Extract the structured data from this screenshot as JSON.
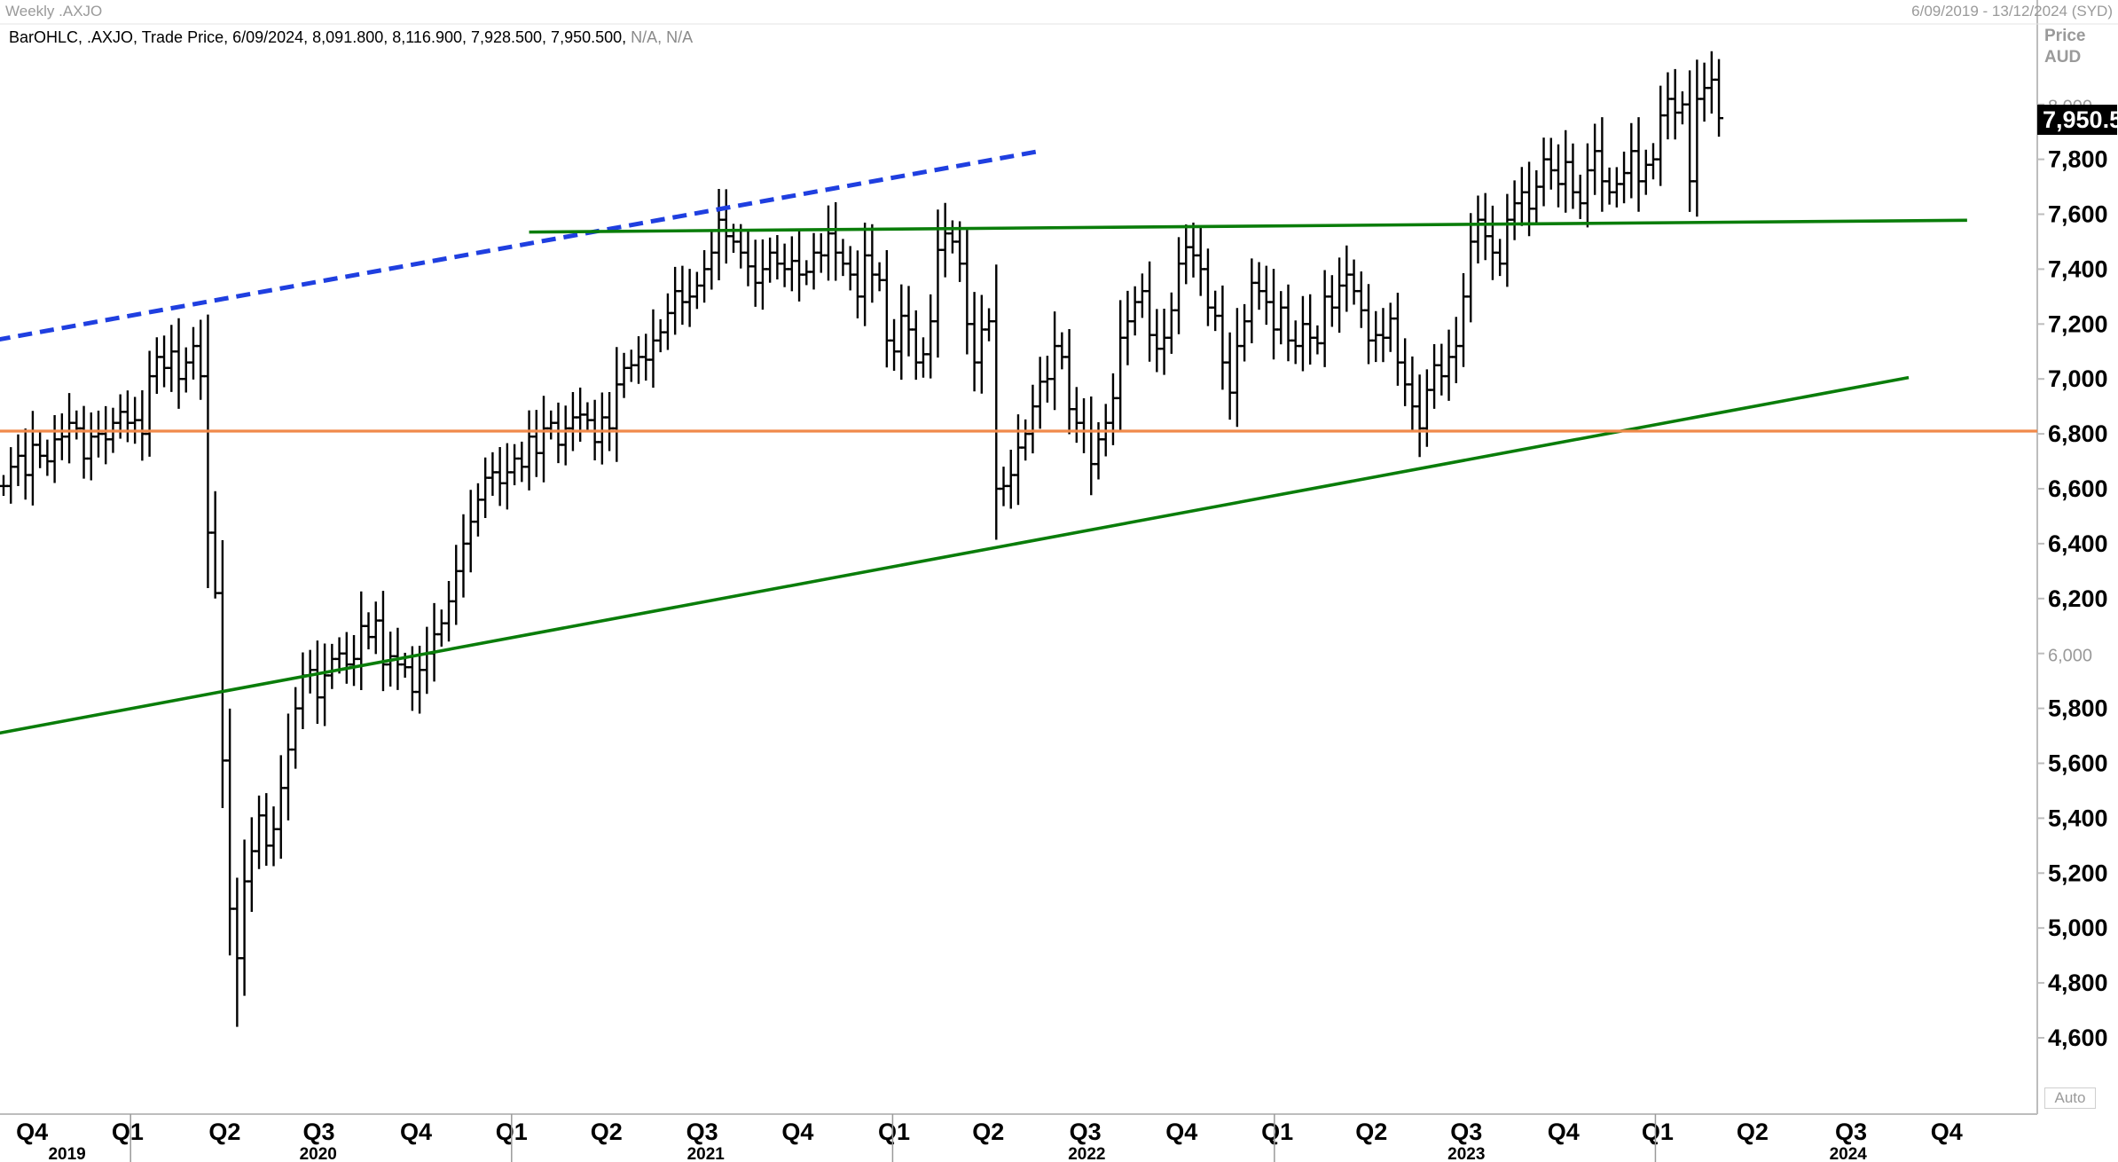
{
  "header": {
    "left_title": "Weekly .AXJO",
    "right_range": "6/09/2019 - 13/12/2024 (SYD)"
  },
  "ohlc_info": {
    "text": "BarOHLC, .AXJO, Trade Price, 6/09/2024, 8,091.800, 8,116.900, 7,928.500, 7,950.500,",
    "na": "N/A, N/A"
  },
  "price_axis": {
    "title_line1": "Price",
    "title_line2": "AUD",
    "last_price_label": "7,950.5",
    "ticks": [
      "4,600",
      "4,800",
      "5,000",
      "5,200",
      "5,400",
      "5,600",
      "5,800",
      "6,000",
      "6,200",
      "6,400",
      "6,600",
      "6,800",
      "7,000",
      "7,200",
      "7,400",
      "7,600",
      "7,800",
      "8,000"
    ],
    "auto_label": "Auto"
  },
  "colors": {
    "bars": "#000000",
    "support_green": "#0a7d0a",
    "resistance_blue": "#1f3fe0",
    "horizontal_orange": "#f08a4b",
    "header_grey": "#9a9a9a"
  },
  "chart_data": {
    "type": "ohlc",
    "title": "Weekly .AXJO",
    "ylabel": "Price AUD",
    "ylim": [
      4420,
      8350
    ],
    "x_unit": "weeks since 6/09/2019",
    "x_quarter_ticks": [
      {
        "label": "Q4",
        "week": 3.9
      },
      {
        "label": "Q1",
        "week": 17.0
      },
      {
        "label": "Q2",
        "week": 30.3
      },
      {
        "label": "Q3",
        "week": 43.2
      },
      {
        "label": "Q4",
        "week": 56.5
      },
      {
        "label": "Q1",
        "week": 69.6
      },
      {
        "label": "Q2",
        "week": 82.6
      },
      {
        "label": "Q3",
        "week": 95.7
      },
      {
        "label": "Q4",
        "week": 108.8
      },
      {
        "label": "Q1",
        "week": 122.0
      },
      {
        "label": "Q2",
        "week": 134.9
      },
      {
        "label": "Q3",
        "week": 148.2
      },
      {
        "label": "Q4",
        "week": 161.4
      },
      {
        "label": "Q1",
        "week": 174.5
      },
      {
        "label": "Q2",
        "week": 187.4
      },
      {
        "label": "Q3",
        "week": 200.4
      },
      {
        "label": "Q4",
        "week": 213.7
      },
      {
        "label": "Q1",
        "week": 226.6
      },
      {
        "label": "Q2",
        "week": 239.6
      },
      {
        "label": "Q3",
        "week": 253.1
      },
      {
        "label": "Q4",
        "week": 266.2
      }
    ],
    "x_year_labels": [
      {
        "label": "2019",
        "week": 8.7
      },
      {
        "label": "2020",
        "week": 43.1
      },
      {
        "label": "2021",
        "week": 96.2
      },
      {
        "label": "2022",
        "week": 148.4
      },
      {
        "label": "2023",
        "week": 200.4
      },
      {
        "label": "2024",
        "week": 252.7
      }
    ],
    "x_year_separators": [
      17.4,
      69.6,
      121.8,
      174.1,
      226.3
    ],
    "weekly_close_approx": [
      6610,
      6680,
      6720,
      6650,
      6760,
      6720,
      6700,
      6780,
      6790,
      6840,
      6820,
      6710,
      6790,
      6800,
      6780,
      6840,
      6880,
      6840,
      6850,
      6800,
      7010,
      7080,
      7040,
      7100,
      7000,
      7060,
      7120,
      7010,
      6440,
      6220,
      5610,
      5070,
      4890,
      5170,
      5280,
      5410,
      5300,
      5360,
      5510,
      5650,
      5800,
      5920,
      5940,
      5840,
      5920,
      5980,
      6000,
      5960,
      5980,
      6100,
      6060,
      6120,
      5960,
      5990,
      5960,
      5950,
      5860,
      5940,
      6000,
      6070,
      6110,
      6190,
      6300,
      6400,
      6480,
      6560,
      6640,
      6660,
      6620,
      6660,
      6710,
      6680,
      6790,
      6730,
      6820,
      6840,
      6760,
      6820,
      6860,
      6870,
      6850,
      6770,
      6860,
      6820,
      6980,
      7040,
      7050,
      7080,
      7070,
      7140,
      7170,
      7240,
      7320,
      7280,
      7300,
      7340,
      7400,
      7460,
      7580,
      7520,
      7500,
      7460,
      7410,
      7350,
      7400,
      7460,
      7420,
      7400,
      7430,
      7380,
      7390,
      7460,
      7450,
      7530,
      7460,
      7420,
      7380,
      7300,
      7450,
      7380,
      7360,
      7140,
      7100,
      7230,
      7180,
      7060,
      7090,
      7210,
      7470,
      7530,
      7500,
      7420,
      7200,
      7060,
      7180,
      7210,
      6600,
      6610,
      6650,
      6750,
      6800,
      6900,
      6990,
      7000,
      7120,
      7080,
      6890,
      6840,
      6810,
      6690,
      6780,
      6840,
      6930,
      7150,
      7210,
      7280,
      7320,
      7160,
      7110,
      7150,
      7250,
      7420,
      7480,
      7450,
      7400,
      7260,
      7230,
      7060,
      6950,
      7120,
      7210,
      7350,
      7320,
      7280,
      7180,
      7260,
      7140,
      7120,
      7200,
      7150,
      7130,
      7300,
      7260,
      7340,
      7380,
      7320,
      7250,
      7140,
      7160,
      7150,
      7220,
      7060,
      6980,
      6900,
      6820,
      6960,
      7050,
      7010,
      7080,
      7120,
      7300,
      7500,
      7580,
      7520,
      7460,
      7420,
      7580,
      7640,
      7680,
      7620,
      7700,
      7800,
      7760,
      7710,
      7790,
      7680,
      7640,
      7760,
      7830,
      7720,
      7680,
      7710,
      7750,
      7830,
      7720,
      7780,
      7800,
      7960,
      8020,
      7970,
      8000,
      7720,
      8020,
      8060,
      8090,
      7950
    ],
    "trendlines": [
      {
        "name": "rising support",
        "color": "green",
        "from": {
          "week": -1,
          "price": 5708
        },
        "to": {
          "week": 261,
          "price": 7005
        }
      },
      {
        "name": "upper resistance (dashed)",
        "color": "blue",
        "from": {
          "week": -1,
          "price": 7142
        },
        "to": {
          "week": 142,
          "price": 7830
        }
      },
      {
        "name": "horizontal resistance",
        "color": "green",
        "from": {
          "week": 72,
          "price": 7535
        },
        "to": {
          "week": 269,
          "price": 7578
        }
      },
      {
        "name": "horizontal level",
        "color": "orange",
        "price": 6810
      }
    ]
  }
}
